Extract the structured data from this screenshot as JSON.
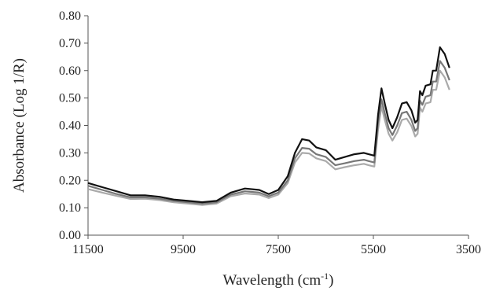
{
  "chart_data": {
    "type": "line",
    "title": "",
    "xlabel": "Wavelength (cm-1)",
    "xlabel_parts": {
      "text": "Wavelength (cm",
      "superscript": "-1",
      "close": ")"
    },
    "ylabel": "Absorbance (Log 1/R)",
    "xlim": [
      11500,
      3500
    ],
    "ylim": [
      0,
      0.8
    ],
    "x_reversed": true,
    "x_ticks": [
      11500,
      9500,
      7500,
      5500,
      3500
    ],
    "y_ticks": [
      0.0,
      0.1,
      0.2,
      0.3,
      0.4,
      0.5,
      0.6,
      0.7,
      0.8
    ],
    "x_tick_labels": [
      "11500",
      "9500",
      "7500",
      "5500",
      "3500"
    ],
    "y_tick_labels": [
      "0.00",
      "0.10",
      "0.20",
      "0.30",
      "0.40",
      "0.50",
      "0.60",
      "0.70",
      "0.80"
    ],
    "grid": false,
    "legend": "none",
    "series": [
      {
        "color": "#111111",
        "points": [
          [
            11500,
            0.19
          ],
          [
            11200,
            0.175
          ],
          [
            10900,
            0.16
          ],
          [
            10600,
            0.145
          ],
          [
            10300,
            0.145
          ],
          [
            10000,
            0.14
          ],
          [
            9700,
            0.13
          ],
          [
            9400,
            0.125
          ],
          [
            9100,
            0.12
          ],
          [
            8800,
            0.125
          ],
          [
            8500,
            0.155
          ],
          [
            8200,
            0.17
          ],
          [
            7900,
            0.165
          ],
          [
            7700,
            0.15
          ],
          [
            7500,
            0.165
          ],
          [
            7300,
            0.215
          ],
          [
            7150,
            0.3
          ],
          [
            7000,
            0.35
          ],
          [
            6850,
            0.345
          ],
          [
            6700,
            0.32
          ],
          [
            6500,
            0.31
          ],
          [
            6300,
            0.275
          ],
          [
            6100,
            0.285
          ],
          [
            5900,
            0.295
          ],
          [
            5700,
            0.3
          ],
          [
            5600,
            0.295
          ],
          [
            5480,
            0.29
          ],
          [
            5400,
            0.44
          ],
          [
            5330,
            0.535
          ],
          [
            5260,
            0.48
          ],
          [
            5180,
            0.42
          ],
          [
            5100,
            0.39
          ],
          [
            5000,
            0.43
          ],
          [
            4900,
            0.48
          ],
          [
            4800,
            0.485
          ],
          [
            4700,
            0.455
          ],
          [
            4620,
            0.41
          ],
          [
            4570,
            0.42
          ],
          [
            4520,
            0.525
          ],
          [
            4470,
            0.51
          ],
          [
            4400,
            0.545
          ],
          [
            4300,
            0.55
          ],
          [
            4250,
            0.6
          ],
          [
            4180,
            0.6
          ],
          [
            4100,
            0.685
          ],
          [
            4000,
            0.66
          ],
          [
            3900,
            0.61
          ]
        ]
      },
      {
        "color": "#777777",
        "points": [
          [
            11500,
            0.18
          ],
          [
            11200,
            0.165
          ],
          [
            10900,
            0.15
          ],
          [
            10600,
            0.138
          ],
          [
            10300,
            0.138
          ],
          [
            10000,
            0.133
          ],
          [
            9700,
            0.125
          ],
          [
            9400,
            0.12
          ],
          [
            9100,
            0.115
          ],
          [
            8800,
            0.12
          ],
          [
            8500,
            0.148
          ],
          [
            8200,
            0.16
          ],
          [
            7900,
            0.155
          ],
          [
            7700,
            0.142
          ],
          [
            7500,
            0.155
          ],
          [
            7300,
            0.2
          ],
          [
            7150,
            0.28
          ],
          [
            7000,
            0.318
          ],
          [
            6850,
            0.315
          ],
          [
            6700,
            0.295
          ],
          [
            6500,
            0.285
          ],
          [
            6300,
            0.255
          ],
          [
            6100,
            0.262
          ],
          [
            5900,
            0.27
          ],
          [
            5700,
            0.275
          ],
          [
            5600,
            0.27
          ],
          [
            5480,
            0.265
          ],
          [
            5400,
            0.41
          ],
          [
            5330,
            0.495
          ],
          [
            5260,
            0.445
          ],
          [
            5180,
            0.39
          ],
          [
            5100,
            0.365
          ],
          [
            5000,
            0.4
          ],
          [
            4900,
            0.445
          ],
          [
            4800,
            0.45
          ],
          [
            4700,
            0.42
          ],
          [
            4620,
            0.38
          ],
          [
            4570,
            0.39
          ],
          [
            4520,
            0.49
          ],
          [
            4470,
            0.475
          ],
          [
            4400,
            0.505
          ],
          [
            4300,
            0.51
          ],
          [
            4250,
            0.56
          ],
          [
            4180,
            0.56
          ],
          [
            4100,
            0.635
          ],
          [
            4000,
            0.61
          ],
          [
            3900,
            0.565
          ]
        ]
      },
      {
        "color": "#aaaaaa",
        "points": [
          [
            11500,
            0.168
          ],
          [
            11200,
            0.155
          ],
          [
            10900,
            0.143
          ],
          [
            10600,
            0.132
          ],
          [
            10300,
            0.133
          ],
          [
            10000,
            0.128
          ],
          [
            9700,
            0.12
          ],
          [
            9400,
            0.115
          ],
          [
            9100,
            0.11
          ],
          [
            8800,
            0.115
          ],
          [
            8500,
            0.142
          ],
          [
            8200,
            0.152
          ],
          [
            7900,
            0.148
          ],
          [
            7700,
            0.135
          ],
          [
            7500,
            0.148
          ],
          [
            7300,
            0.19
          ],
          [
            7150,
            0.265
          ],
          [
            7000,
            0.3
          ],
          [
            6850,
            0.298
          ],
          [
            6700,
            0.28
          ],
          [
            6500,
            0.27
          ],
          [
            6300,
            0.24
          ],
          [
            6100,
            0.248
          ],
          [
            5900,
            0.255
          ],
          [
            5700,
            0.26
          ],
          [
            5600,
            0.255
          ],
          [
            5480,
            0.25
          ],
          [
            5400,
            0.385
          ],
          [
            5330,
            0.47
          ],
          [
            5260,
            0.42
          ],
          [
            5180,
            0.37
          ],
          [
            5100,
            0.345
          ],
          [
            5000,
            0.375
          ],
          [
            4900,
            0.42
          ],
          [
            4800,
            0.425
          ],
          [
            4700,
            0.398
          ],
          [
            4620,
            0.36
          ],
          [
            4570,
            0.37
          ],
          [
            4520,
            0.465
          ],
          [
            4470,
            0.45
          ],
          [
            4400,
            0.48
          ],
          [
            4300,
            0.485
          ],
          [
            4250,
            0.53
          ],
          [
            4180,
            0.53
          ],
          [
            4100,
            0.6
          ],
          [
            4000,
            0.575
          ],
          [
            3900,
            0.53
          ]
        ]
      }
    ]
  }
}
